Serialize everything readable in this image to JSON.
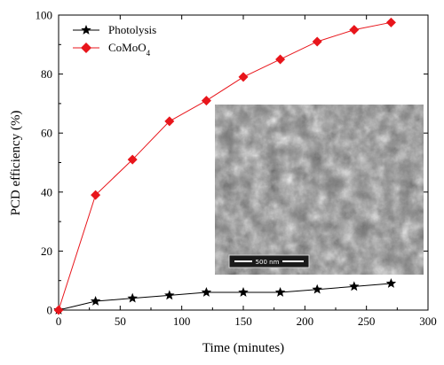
{
  "chart_data": {
    "type": "line",
    "title": "",
    "xlabel": "Time (minutes)",
    "ylabel": "PCD efficiency (%)",
    "xlim": [
      0,
      300
    ],
    "ylim": [
      0,
      100
    ],
    "xticks": [
      0,
      50,
      100,
      150,
      200,
      250,
      300
    ],
    "yticks": [
      0,
      20,
      40,
      60,
      80,
      100
    ],
    "grid": false,
    "legend_position": "top-left",
    "series": [
      {
        "name": "Photolysis",
        "color": "#000000",
        "marker": "star",
        "x": [
          0,
          30,
          60,
          90,
          120,
          150,
          180,
          210,
          240,
          270
        ],
        "y": [
          0,
          3,
          4,
          5,
          6,
          6,
          6,
          7,
          8,
          9
        ]
      },
      {
        "name": "CoMoO4",
        "color": "#e8151b",
        "marker": "diamond",
        "x": [
          0,
          30,
          60,
          90,
          120,
          150,
          180,
          210,
          240,
          270
        ],
        "y": [
          0,
          39,
          51,
          64,
          71,
          79,
          85,
          91,
          95,
          97.5
        ]
      }
    ],
    "inset": {
      "type": "SEM micrograph",
      "scale_bar_label": "500 nm"
    }
  }
}
